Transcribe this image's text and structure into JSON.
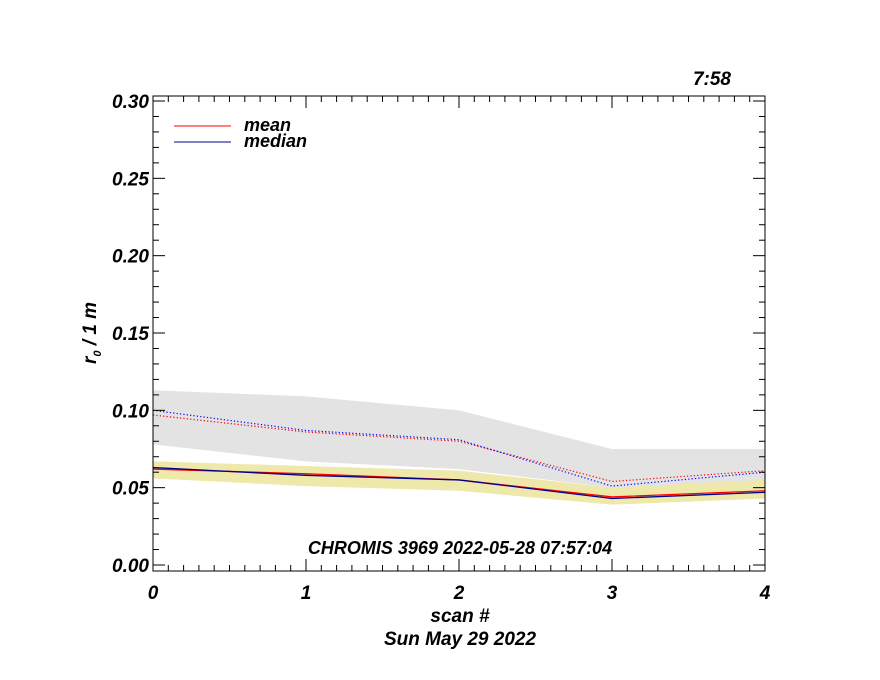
{
  "chart_data": {
    "type": "line",
    "corner_time": "7:58",
    "annotation": "CHROMIS 3969 2022-05-28 07:57:04",
    "xlabel": "scan #",
    "date_label": "Sun May 29 2022",
    "ylabel_main": "r",
    "ylabel_sub": "0",
    "ylabel_rest": " / 1 m",
    "xlim": [
      0,
      4
    ],
    "ylim": [
      0.0,
      0.3
    ],
    "x_ticks": [
      0,
      1,
      2,
      3,
      4
    ],
    "x_tick_labels": [
      "0",
      "1",
      "2",
      "3",
      "4"
    ],
    "y_ticks": [
      0.0,
      0.05,
      0.1,
      0.15,
      0.2,
      0.25,
      0.3
    ],
    "y_tick_labels": [
      "0.00",
      "0.05",
      "0.10",
      "0.15",
      "0.20",
      "0.25",
      "0.30"
    ],
    "x": [
      0,
      1,
      2,
      3,
      4
    ],
    "legend": [
      {
        "name": "mean",
        "color": "#ff0000"
      },
      {
        "name": "median",
        "color": "#00008b"
      }
    ],
    "series": [
      {
        "name": "mean",
        "color": "#ff0000",
        "style": "solid",
        "values": [
          0.062,
          0.059,
          0.055,
          0.044,
          0.048
        ]
      },
      {
        "name": "median",
        "color": "#00008b",
        "style": "solid",
        "values": [
          0.063,
          0.058,
          0.055,
          0.043,
          0.047
        ]
      },
      {
        "name": "mean-dotted",
        "color": "#ff0000",
        "style": "dotted",
        "values": [
          0.097,
          0.086,
          0.08,
          0.054,
          0.061
        ]
      },
      {
        "name": "median-dotted",
        "color": "#0000ff",
        "style": "dotted",
        "values": [
          0.1,
          0.087,
          0.081,
          0.051,
          0.06
        ]
      }
    ],
    "bands": [
      {
        "name": "gray-band",
        "color": "#e3e3e3",
        "lower": [
          0.078,
          0.067,
          0.062,
          0.05,
          0.05
        ],
        "upper": [
          0.113,
          0.109,
          0.1,
          0.075,
          0.075
        ]
      },
      {
        "name": "yellow-band",
        "color": "#eee8aa",
        "lower": [
          0.056,
          0.051,
          0.048,
          0.039,
          0.043
        ],
        "upper": [
          0.067,
          0.064,
          0.061,
          0.05,
          0.055
        ]
      }
    ],
    "grid": false
  }
}
